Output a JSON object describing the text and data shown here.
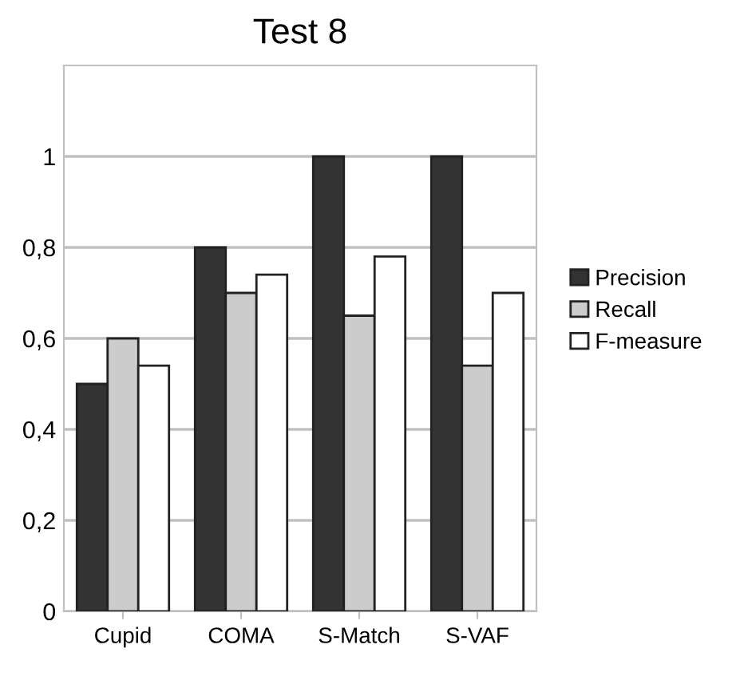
{
  "chart_data": {
    "type": "bar",
    "title": "Test 8",
    "categories": [
      "Cupid",
      "COMA",
      "S-Match",
      "S-VAF"
    ],
    "series": [
      {
        "name": "Precision",
        "color": "#333333",
        "values": [
          0.5,
          0.8,
          1,
          1
        ]
      },
      {
        "name": "Recall",
        "color": "#cccccc",
        "values": [
          0.6,
          0.7,
          0.65,
          0.54
        ]
      },
      {
        "name": "F-measure",
        "color": "#ffffff",
        "values": [
          0.54,
          0.74,
          0.78,
          0.7
        ]
      }
    ],
    "ylim": [
      0,
      1.2
    ],
    "yticks": [
      {
        "value": 0,
        "label": "0"
      },
      {
        "value": 0.2,
        "label": "0,2"
      },
      {
        "value": 0.4,
        "label": "0,4"
      },
      {
        "value": 0.6,
        "label": "0,6"
      },
      {
        "value": 0.8,
        "label": "0,8"
      },
      {
        "value": 1,
        "label": "1"
      }
    ],
    "grid": "y",
    "legend": "right"
  }
}
